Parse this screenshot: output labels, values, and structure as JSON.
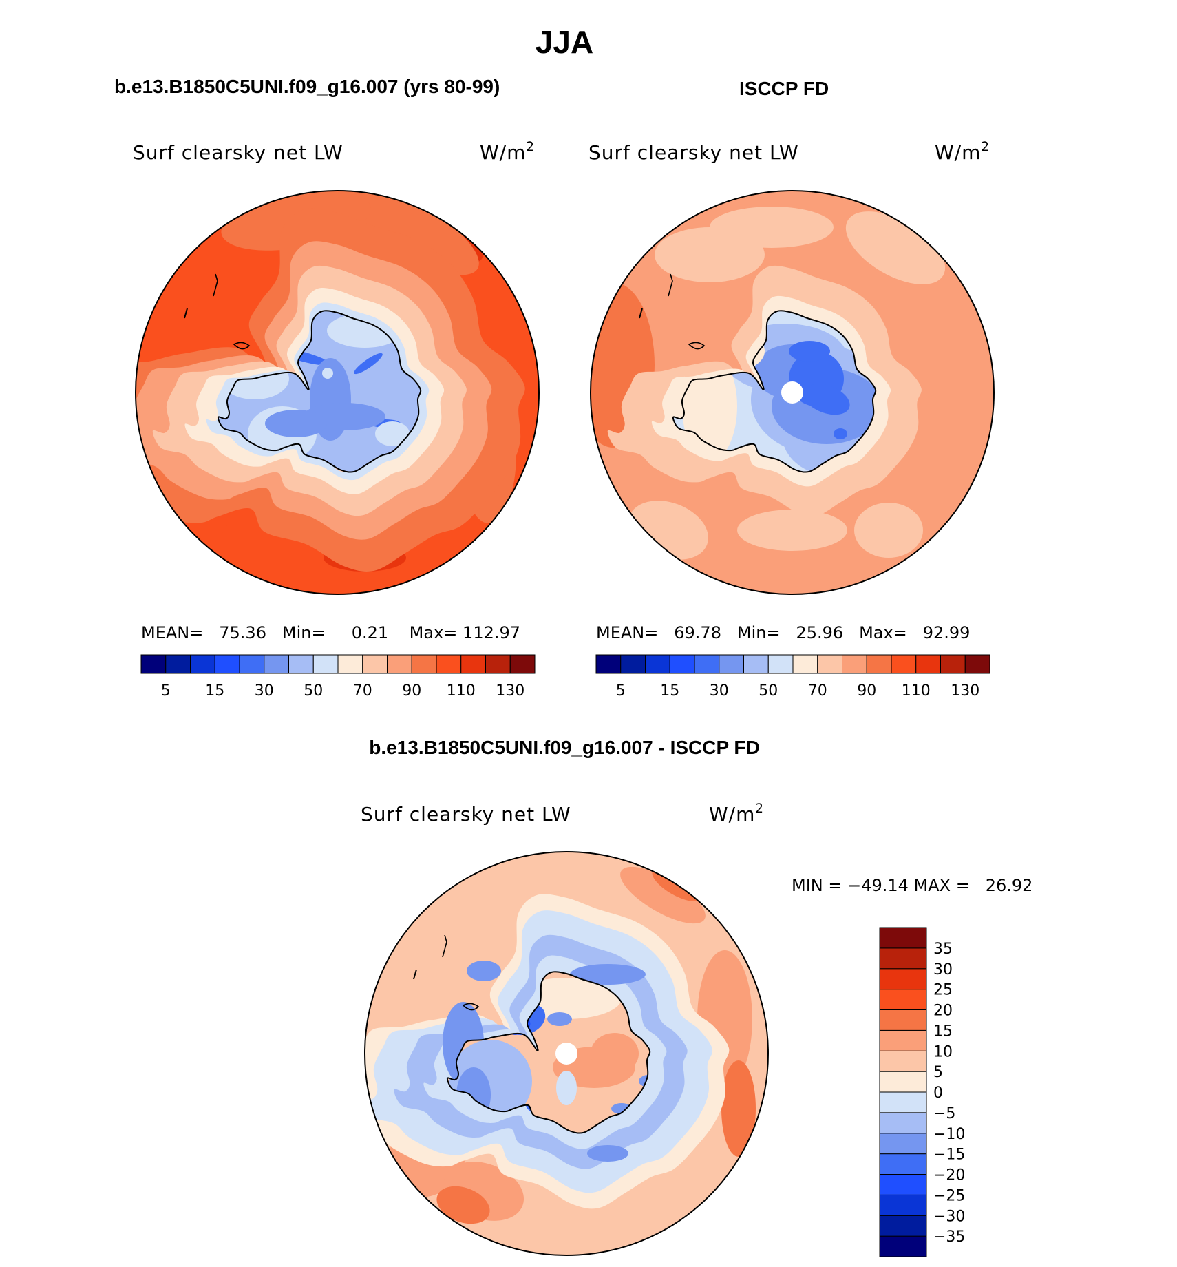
{
  "page_title": "JJA",
  "chart_data": [
    {
      "type": "heatmap",
      "projection": "south polar stereographic",
      "header": "b.e13.B1850C5UNI.f09_g16.007 (yrs 80-99)",
      "title": "Surf clearsky net LW",
      "units": "W/m",
      "units_exp": "2",
      "stats": {
        "mean_label": "MEAN=",
        "mean": "75.36",
        "min_label": "Min=",
        "min": "0.21",
        "max_label": "Max=",
        "max": "112.97"
      },
      "colorbar": {
        "levels": [
          5,
          10,
          15,
          20,
          30,
          40,
          50,
          60,
          70,
          80,
          90,
          100,
          110,
          120,
          130
        ],
        "tick_labels": [
          "5",
          "15",
          "30",
          "50",
          "70",
          "90",
          "110",
          "130"
        ],
        "colors": [
          "#00007a",
          "#001c9e",
          "#0a35d6",
          "#1f4fff",
          "#3f6ef5",
          "#7596f0",
          "#a6bdf5",
          "#d2e2f8",
          "#fdebd9",
          "#fcc6a8",
          "#fa9f79",
          "#f57545",
          "#fa501e",
          "#e8350e",
          "#b8220b",
          "#7d0a0a"
        ]
      }
    },
    {
      "type": "heatmap",
      "projection": "south polar stereographic",
      "header": "ISCCP FD",
      "title": "Surf clearsky net LW",
      "units": "W/m",
      "units_exp": "2",
      "stats": {
        "mean_label": "MEAN=",
        "mean": "69.78",
        "min_label": "Min=",
        "min": "25.96",
        "max_label": "Max=",
        "max": "92.99"
      },
      "colorbar": {
        "levels": [
          5,
          10,
          15,
          20,
          30,
          40,
          50,
          60,
          70,
          80,
          90,
          100,
          110,
          120,
          130
        ],
        "tick_labels": [
          "5",
          "15",
          "30",
          "50",
          "70",
          "90",
          "110",
          "130"
        ],
        "colors": [
          "#00007a",
          "#001c9e",
          "#0a35d6",
          "#1f4fff",
          "#3f6ef5",
          "#7596f0",
          "#a6bdf5",
          "#d2e2f8",
          "#fdebd9",
          "#fcc6a8",
          "#fa9f79",
          "#f57545",
          "#fa501e",
          "#e8350e",
          "#b8220b",
          "#7d0a0a"
        ]
      }
    },
    {
      "type": "heatmap",
      "projection": "south polar stereographic",
      "header": "b.e13.B1850C5UNI.f09_g16.007 - ISCCP FD",
      "title": "Surf clearsky net LW",
      "units": "W/m",
      "units_exp": "2",
      "stats": {
        "text": "MIN = −49.14 MAX =   26.92"
      },
      "colorbar": {
        "levels": [
          -35,
          -30,
          -25,
          -20,
          -15,
          -10,
          -5,
          0,
          5,
          10,
          15,
          20,
          25,
          30,
          35
        ],
        "tick_labels": [
          "35",
          "30",
          "25",
          "20",
          "15",
          "10",
          "5",
          "0",
          "−5",
          "−10",
          "−15",
          "−20",
          "−25",
          "−30",
          "−35"
        ],
        "colors": [
          "#00007a",
          "#001c9e",
          "#0a35d6",
          "#1f4fff",
          "#3f6ef5",
          "#7596f0",
          "#a6bdf5",
          "#d2e2f8",
          "#fdebd9",
          "#fcc6a8",
          "#fa9f79",
          "#f57545",
          "#fa501e",
          "#e8350e",
          "#b8220b",
          "#7d0a0a"
        ]
      }
    }
  ]
}
